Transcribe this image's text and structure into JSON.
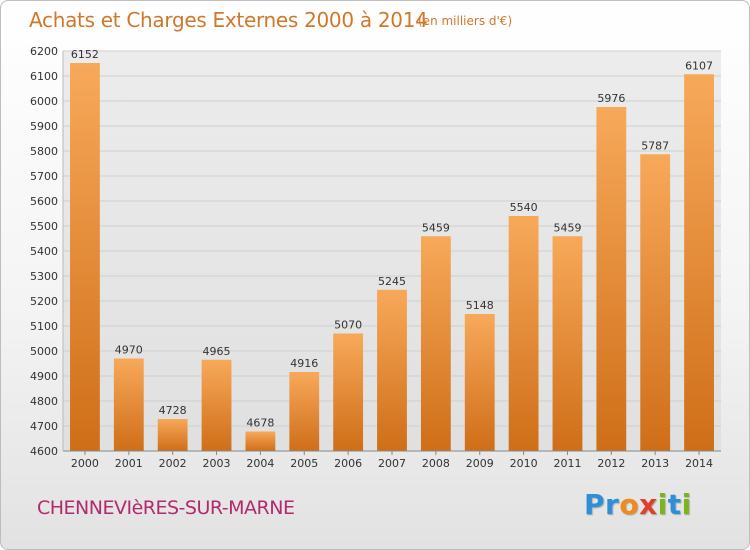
{
  "header": {
    "title": "Achats et Charges Externes 2000 à 2014",
    "subtitle": "(en milliers d'€)"
  },
  "footer": {
    "town": "CHENNEVIèRES-SUR-MARNE",
    "logo": {
      "text": "Proxiti",
      "letters": [
        {
          "ch": "P",
          "color": "#2f8fd6"
        },
        {
          "ch": "r",
          "color": "#2f8fd6"
        },
        {
          "ch": "o",
          "color": "#f08a1c"
        },
        {
          "ch": "x",
          "color": "#e0402a"
        },
        {
          "ch": "i",
          "color": "#7ab51d"
        },
        {
          "ch": "t",
          "color": "#2f8fd6"
        },
        {
          "ch": "i",
          "color": "#7ab51d"
        }
      ]
    }
  },
  "colors": {
    "title": "#d0782a",
    "town": "#b22a6e",
    "bar_top": "#f7a95a",
    "bar_bottom": "#cf6e18",
    "grid": "#cfcfcf",
    "text": "#333333"
  },
  "chart_data": {
    "type": "bar",
    "title": "Achats et Charges Externes 2000 à 2014",
    "subtitle": "(en milliers d'€)",
    "categories": [
      "2000",
      "2001",
      "2002",
      "2003",
      "2004",
      "2005",
      "2006",
      "2007",
      "2008",
      "2009",
      "2010",
      "2011",
      "2012",
      "2013",
      "2014"
    ],
    "values": [
      6152,
      4970,
      4728,
      4965,
      4678,
      4916,
      5070,
      5245,
      5459,
      5148,
      5540,
      5459,
      5976,
      5787,
      6107
    ],
    "ylim": [
      4600,
      6200
    ],
    "yticks": [
      4600,
      4700,
      4800,
      4900,
      5000,
      5100,
      5200,
      5300,
      5400,
      5500,
      5600,
      5700,
      5800,
      5900,
      6000,
      6100,
      6200
    ],
    "grid": true,
    "legend": "none"
  }
}
